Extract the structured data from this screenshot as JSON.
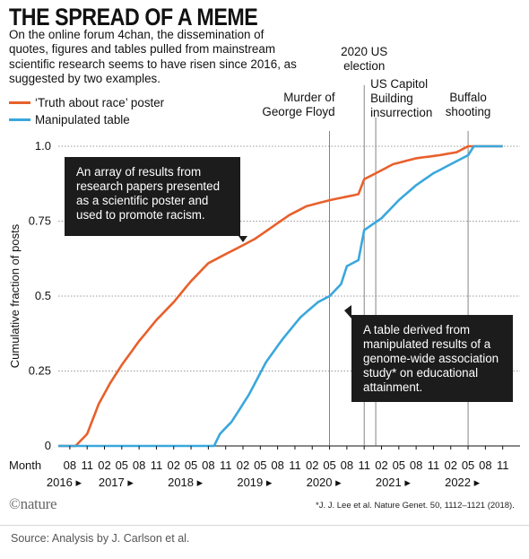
{
  "header": {
    "title": "THE SPREAD OF A MEME",
    "subtitle": "On the online forum 4chan, the dissemination of quotes, figures and tables pulled from mainstream scientific research seems to have risen since 2016, as suggested by two examples."
  },
  "brand": "©nature",
  "footnote": "*J. J. Lee et al. Nature Genet. 50, 1112–1121 (2018).",
  "source": "Source: Analysis by J. Carlson et al.",
  "colors": {
    "orange": "#e8602c",
    "blue": "#3aa7dc",
    "annotation_bg": "#1c1c1c"
  },
  "chart_data": {
    "type": "line",
    "ylabel": "Cumulative fraction of posts",
    "xlabel": "",
    "ylim": [
      0,
      1
    ],
    "yticks": [
      {
        "value": 0,
        "label": "0"
      },
      {
        "value": 0.25,
        "label": "0.25"
      },
      {
        "value": 0.5,
        "label": "0.5"
      },
      {
        "value": 0.75,
        "label": "0.75"
      },
      {
        "value": 1.0,
        "label": "1.0"
      }
    ],
    "xlim": [
      "2016-06",
      "2023-02"
    ],
    "x_month_prefix": "Month",
    "xticks": [
      "2016-08",
      "2016-11",
      "2017-02",
      "2017-05",
      "2017-08",
      "2017-11",
      "2018-02",
      "2018-05",
      "2018-08",
      "2018-11",
      "2019-02",
      "2019-05",
      "2019-08",
      "2019-11",
      "2020-02",
      "2020-05",
      "2020-08",
      "2020-11",
      "2021-02",
      "2021-05",
      "2021-08",
      "2021-11",
      "2022-02",
      "2022-05",
      "2022-08",
      "2022-11"
    ],
    "xtick_labels": [
      "08",
      "11",
      "02",
      "05",
      "08",
      "11",
      "02",
      "05",
      "08",
      "11",
      "02",
      "05",
      "08",
      "11",
      "02",
      "05",
      "08",
      "11",
      "02",
      "05",
      "08",
      "11",
      "02",
      "05",
      "08",
      "11"
    ],
    "year_labels": [
      {
        "at": "2016-07",
        "label": "2016 ▸"
      },
      {
        "at": "2017-04",
        "label": "2017 ▸"
      },
      {
        "at": "2018-04",
        "label": "2018 ▸"
      },
      {
        "at": "2019-04",
        "label": "2019 ▸"
      },
      {
        "at": "2020-04",
        "label": "2020 ▸"
      },
      {
        "at": "2021-04",
        "label": "2021 ▸"
      },
      {
        "at": "2022-04",
        "label": "2022 ▸"
      }
    ],
    "grid": true,
    "legend_position": "top-left",
    "series": [
      {
        "name": "‘Truth about race’ poster",
        "color": "#e8602c",
        "points": [
          [
            "2016-06",
            0
          ],
          [
            "2016-09",
            0
          ],
          [
            "2016-11",
            0.04
          ],
          [
            "2017-01",
            0.14
          ],
          [
            "2017-03",
            0.21
          ],
          [
            "2017-05",
            0.27
          ],
          [
            "2017-08",
            0.35
          ],
          [
            "2017-11",
            0.42
          ],
          [
            "2018-02",
            0.48
          ],
          [
            "2018-05",
            0.55
          ],
          [
            "2018-08",
            0.61
          ],
          [
            "2018-11",
            0.64
          ],
          [
            "2019-01",
            0.66
          ],
          [
            "2019-04",
            0.69
          ],
          [
            "2019-07",
            0.73
          ],
          [
            "2019-10",
            0.77
          ],
          [
            "2020-01",
            0.8
          ],
          [
            "2020-05",
            0.82
          ],
          [
            "2020-10",
            0.84
          ],
          [
            "2020-11",
            0.89
          ],
          [
            "2021-01",
            0.91
          ],
          [
            "2021-04",
            0.94
          ],
          [
            "2021-08",
            0.96
          ],
          [
            "2021-12",
            0.97
          ],
          [
            "2022-03",
            0.98
          ],
          [
            "2022-05",
            1.0
          ],
          [
            "2022-11",
            1.0
          ]
        ]
      },
      {
        "name": "Manipulated table",
        "color": "#3aa7dc",
        "points": [
          [
            "2016-06",
            0
          ],
          [
            "2018-09",
            0
          ],
          [
            "2018-10",
            0.04
          ],
          [
            "2018-12",
            0.08
          ],
          [
            "2019-03",
            0.17
          ],
          [
            "2019-06",
            0.28
          ],
          [
            "2019-09",
            0.36
          ],
          [
            "2019-12",
            0.43
          ],
          [
            "2020-03",
            0.48
          ],
          [
            "2020-05",
            0.5
          ],
          [
            "2020-07",
            0.54
          ],
          [
            "2020-08",
            0.6
          ],
          [
            "2020-10",
            0.62
          ],
          [
            "2020-11",
            0.72
          ],
          [
            "2021-02",
            0.76
          ],
          [
            "2021-05",
            0.82
          ],
          [
            "2021-08",
            0.87
          ],
          [
            "2021-11",
            0.91
          ],
          [
            "2022-02",
            0.94
          ],
          [
            "2022-05",
            0.97
          ],
          [
            "2022-06",
            1.0
          ],
          [
            "2022-11",
            1.0
          ]
        ]
      }
    ],
    "events": [
      {
        "date": "2020-05",
        "lines": [
          "Murder of",
          "George Floyd"
        ]
      },
      {
        "date": "2020-11",
        "lines": [
          "2020 US",
          "election"
        ]
      },
      {
        "date": "2021-01",
        "lines": [
          "US Capitol",
          "Building",
          "insurrection"
        ]
      },
      {
        "date": "2022-05",
        "lines": [
          "Buffalo",
          "shooting"
        ]
      }
    ],
    "annotations": [
      {
        "series": 0,
        "lines": [
          "An array of results from",
          "research papers presented",
          "as a scientific poster and",
          "used to promote racism."
        ]
      },
      {
        "series": 1,
        "lines": [
          "A table derived from",
          "manipulated results of a",
          "genome-wide association",
          "study* on educational",
          "attainment."
        ]
      }
    ]
  }
}
